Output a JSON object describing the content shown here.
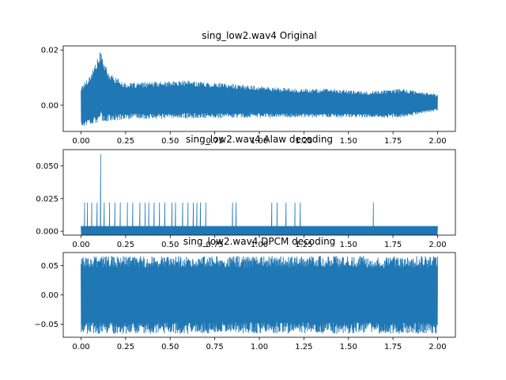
{
  "chart_data": [
    {
      "type": "line",
      "title": "sing_low2.wav4 Original",
      "xlabel": "",
      "ylabel": "",
      "xlim": [
        -0.1,
        2.1
      ],
      "ylim": [
        -0.0095,
        0.0215
      ],
      "xticks": [
        0.0,
        0.25,
        0.5,
        0.75,
        1.0,
        1.25,
        1.5,
        1.75,
        2.0
      ],
      "xtick_labels": [
        "0.00",
        "0.25",
        "0.50",
        "0.75",
        "1.00",
        "1.25",
        "1.50",
        "1.75",
        "2.00"
      ],
      "yticks": [
        0.0,
        0.02
      ],
      "ytick_labels": [
        "0.00",
        "0.02"
      ],
      "color": "#1f77b4",
      "series": [
        {
          "x": [
            0.0,
            0.05,
            0.1,
            0.11,
            0.15,
            0.25,
            0.4,
            0.6,
            0.8,
            1.0,
            1.2,
            1.4,
            1.6,
            1.8,
            2.0
          ],
          "y_max": [
            0.007,
            0.011,
            0.018,
            0.0198,
            0.012,
            0.008,
            0.0085,
            0.009,
            0.008,
            0.007,
            0.006,
            0.006,
            0.005,
            0.006,
            0.004
          ],
          "y_min": [
            -0.008,
            -0.007,
            -0.0065,
            -0.006,
            -0.006,
            -0.005,
            -0.005,
            -0.0048,
            -0.0048,
            -0.0045,
            -0.0045,
            -0.0045,
            -0.0045,
            -0.0045,
            -0.002
          ]
        }
      ]
    },
    {
      "type": "line",
      "title": "sing_low2.wav4 Alaw decoding",
      "xlabel": "",
      "ylabel": "",
      "xlim": [
        -0.1,
        2.1
      ],
      "ylim": [
        -0.003,
        0.0625
      ],
      "xticks": [
        0.0,
        0.25,
        0.5,
        0.75,
        1.0,
        1.25,
        1.5,
        1.75,
        2.0
      ],
      "xtick_labels": [
        "0.00",
        "0.25",
        "0.50",
        "0.75",
        "1.00",
        "1.25",
        "1.50",
        "1.75",
        "2.00"
      ],
      "yticks": [
        0.0,
        0.025,
        0.05
      ],
      "ytick_labels": [
        "0.000",
        "0.025",
        "0.050"
      ],
      "color": "#1f77b4",
      "baseline_range": [
        -0.003,
        0.004
      ],
      "spikes": [
        {
          "x": 0.11,
          "y": 0.059
        },
        {
          "x": 0.02,
          "y": 0.022
        },
        {
          "x": 0.035,
          "y": 0.022
        },
        {
          "x": 0.06,
          "y": 0.022
        },
        {
          "x": 0.09,
          "y": 0.022
        },
        {
          "x": 0.13,
          "y": 0.022
        },
        {
          "x": 0.16,
          "y": 0.022
        },
        {
          "x": 0.19,
          "y": 0.022
        },
        {
          "x": 0.22,
          "y": 0.022
        },
        {
          "x": 0.26,
          "y": 0.022
        },
        {
          "x": 0.29,
          "y": 0.022
        },
        {
          "x": 0.33,
          "y": 0.022
        },
        {
          "x": 0.36,
          "y": 0.022
        },
        {
          "x": 0.38,
          "y": 0.022
        },
        {
          "x": 0.41,
          "y": 0.022
        },
        {
          "x": 0.44,
          "y": 0.022
        },
        {
          "x": 0.47,
          "y": 0.022
        },
        {
          "x": 0.51,
          "y": 0.022
        },
        {
          "x": 0.53,
          "y": 0.022
        },
        {
          "x": 0.57,
          "y": 0.022
        },
        {
          "x": 0.6,
          "y": 0.022
        },
        {
          "x": 0.63,
          "y": 0.022
        },
        {
          "x": 0.65,
          "y": 0.022
        },
        {
          "x": 0.67,
          "y": 0.022
        },
        {
          "x": 0.7,
          "y": 0.022
        },
        {
          "x": 0.85,
          "y": 0.022
        },
        {
          "x": 0.87,
          "y": 0.022
        },
        {
          "x": 1.07,
          "y": 0.022
        },
        {
          "x": 1.1,
          "y": 0.022
        },
        {
          "x": 1.15,
          "y": 0.022
        },
        {
          "x": 1.2,
          "y": 0.022
        },
        {
          "x": 1.23,
          "y": 0.022
        },
        {
          "x": 1.64,
          "y": 0.022
        }
      ]
    },
    {
      "type": "line",
      "title": "sing_low2.wav4 DPCM decoding",
      "xlabel": "",
      "ylabel": "",
      "xlim": [
        -0.1,
        2.1
      ],
      "ylim": [
        -0.072,
        0.072
      ],
      "xticks": [
        0.0,
        0.25,
        0.5,
        0.75,
        1.0,
        1.25,
        1.5,
        1.75,
        2.0
      ],
      "xtick_labels": [
        "0.00",
        "0.25",
        "0.50",
        "0.75",
        "1.00",
        "1.25",
        "1.50",
        "1.75",
        "2.00"
      ],
      "yticks": [
        -0.05,
        0.0,
        0.05
      ],
      "ytick_labels": [
        "−0.05",
        "0.00",
        "0.05"
      ],
      "color": "#1f77b4",
      "series": [
        {
          "x": [
            0.0,
            2.0
          ],
          "y_max": [
            0.066,
            0.066
          ],
          "y_min": [
            -0.066,
            -0.066
          ]
        }
      ]
    }
  ]
}
